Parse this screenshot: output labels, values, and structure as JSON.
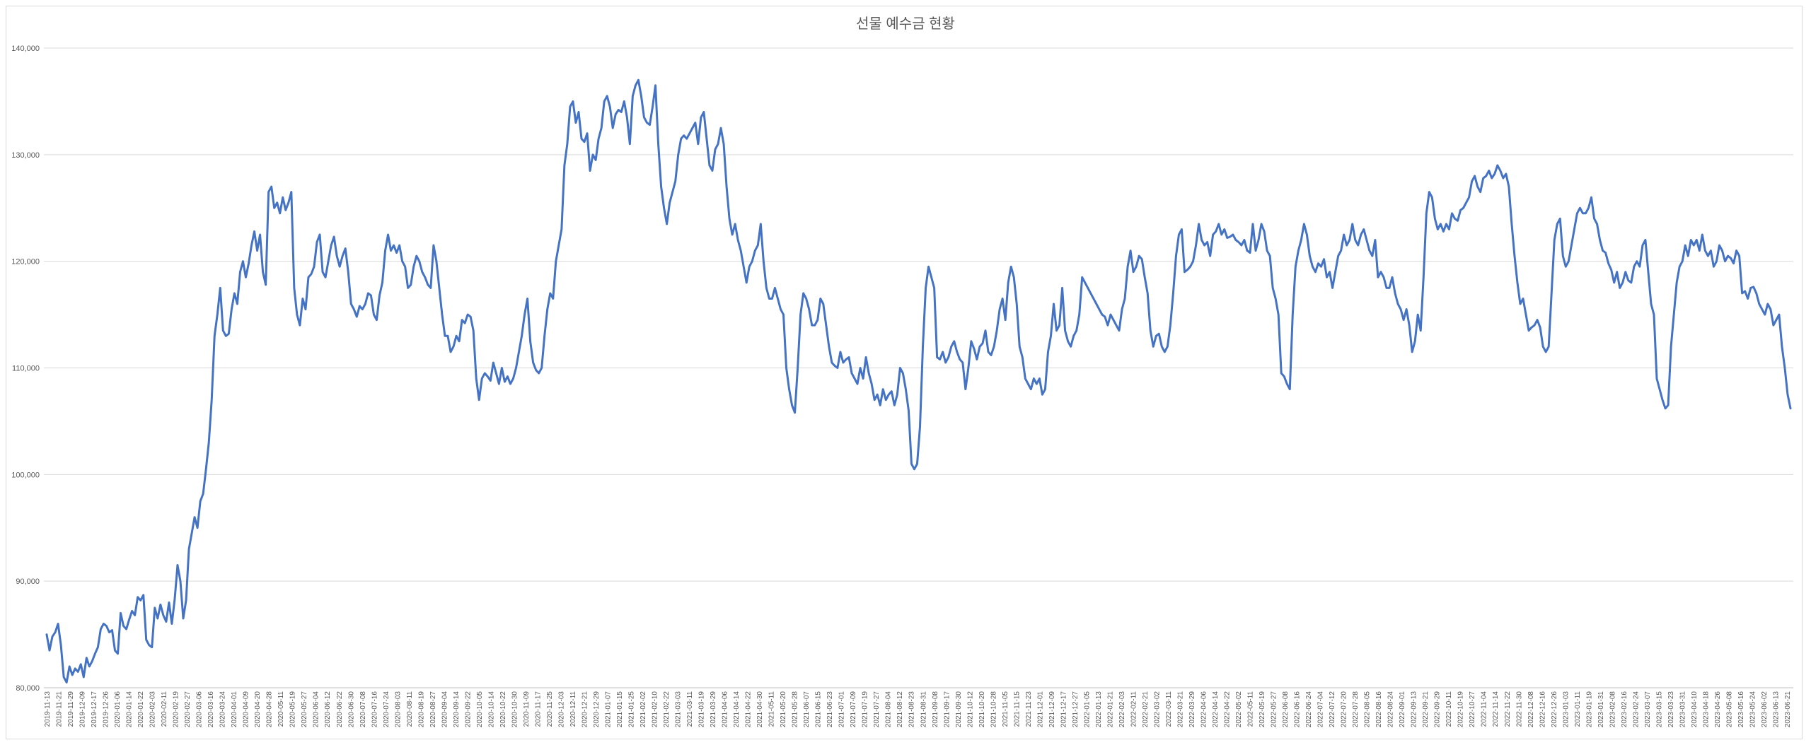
{
  "chart_data": {
    "type": "line",
    "title": "선물 예수금 현황",
    "xlabel": "",
    "ylabel": "",
    "ylim": [
      80000,
      140000
    ],
    "yticks": [
      80000,
      90000,
      100000,
      110000,
      120000,
      130000,
      140000
    ],
    "ytick_labels": [
      "80,000",
      "90,000",
      "100,000",
      "110,000",
      "120,000",
      "130,000",
      "140,000"
    ],
    "grid": true,
    "legend": "none",
    "color": "#4472c4",
    "x_tick_labels": [
      "2019-11-13",
      "2019-11-21",
      "2019-11-29",
      "2019-12-09",
      "2019-12-17",
      "2019-12-26",
      "2020-01-06",
      "2020-01-14",
      "2020-01-22",
      "2020-02-03",
      "2020-02-11",
      "2020-02-19",
      "2020-02-27",
      "2020-03-06",
      "2020-03-16",
      "2020-03-24",
      "2020-04-01",
      "2020-04-09",
      "2020-04-20",
      "2020-04-28",
      "2020-05-11",
      "2020-05-19",
      "2020-05-27",
      "2020-06-04",
      "2020-06-12",
      "2020-06-22",
      "2020-06-30",
      "2020-07-08",
      "2020-07-16",
      "2020-07-24",
      "2020-08-03",
      "2020-08-11",
      "2020-08-19",
      "2020-08-27",
      "2020-09-04",
      "2020-09-14",
      "2020-09-22",
      "2020-10-05",
      "2020-10-14",
      "2020-10-22",
      "2020-10-30",
      "2020-11-09",
      "2020-11-17",
      "2020-11-25",
      "2020-12-03",
      "2020-12-11",
      "2020-12-21",
      "2020-12-29",
      "2021-01-07",
      "2021-01-15",
      "2021-01-25",
      "2021-02-02",
      "2021-02-10",
      "2021-02-22",
      "2021-03-03",
      "2021-03-11",
      "2021-03-19",
      "2021-03-29",
      "2021-04-06",
      "2021-04-14",
      "2021-04-22",
      "2021-04-30",
      "2021-05-11",
      "2021-05-20",
      "2021-05-28",
      "2021-06-07",
      "2021-06-15",
      "2021-06-23",
      "2021-07-01",
      "2021-07-09",
      "2021-07-19",
      "2021-07-27",
      "2021-08-04",
      "2021-08-12",
      "2021-08-23",
      "2021-08-31",
      "2021-09-08",
      "2021-09-17",
      "2021-09-30",
      "2021-10-12",
      "2021-10-20",
      "2021-10-28",
      "2021-11-05",
      "2021-11-15",
      "2021-11-23",
      "2021-12-01",
      "2021-12-09",
      "2021-12-17",
      "2021-12-27",
      "2022-01-05",
      "2022-01-13",
      "2022-01-21",
      "2022-02-03",
      "2022-02-11",
      "2022-02-21",
      "2022-03-02",
      "2022-03-11",
      "2022-03-21",
      "2022-03-29",
      "2022-04-06",
      "2022-04-14",
      "2022-04-22",
      "2022-05-02",
      "2022-05-11",
      "2022-05-19",
      "2022-05-27",
      "2022-06-08",
      "2022-06-16",
      "2022-06-24",
      "2022-07-04",
      "2022-07-12",
      "2022-07-20",
      "2022-07-28",
      "2022-08-05",
      "2022-08-16",
      "2022-08-24",
      "2022-09-01",
      "2022-09-13",
      "2022-09-21",
      "2022-09-29",
      "2022-10-11",
      "2022-10-19",
      "2022-10-27",
      "2022-11-04",
      "2022-11-14",
      "2022-11-22",
      "2022-11-30",
      "2022-12-08",
      "2022-12-16",
      "2022-12-26",
      "2023-01-03",
      "2023-01-11",
      "2023-01-19",
      "2023-01-31",
      "2023-02-08",
      "2023-02-16",
      "2023-02-24",
      "2023-03-07",
      "2023-03-15",
      "2023-03-23",
      "2023-03-31",
      "2023-04-10",
      "2023-04-18",
      "2023-04-26",
      "2023-05-08",
      "2023-05-16",
      "2023-05-24",
      "2023-06-02",
      "2023-06-13",
      "2023-06-21"
    ],
    "x_start_date": "2019-11-13",
    "series": [
      {
        "values": [
          85000,
          83500,
          84800,
          85200,
          86000,
          84000,
          81000,
          80500,
          82000,
          81200,
          81800,
          81500,
          82200,
          81000,
          82800,
          82000,
          82500,
          83200,
          83800,
          85500,
          86000,
          85800,
          85200,
          85400,
          83500,
          83200,
          87000,
          85800,
          85500,
          86400,
          87200,
          86800,
          88500,
          88200,
          88700,
          84500,
          84000,
          83800,
          87500,
          86500,
          87800,
          86800,
          86200,
          88000,
          86000,
          88300,
          91500,
          90000,
          86500,
          88200,
          93000,
          94500,
          96000,
          95000,
          97500,
          98200,
          100500,
          103000,
          107000,
          113000,
          115000,
          117500,
          113500,
          113000,
          113200,
          115500,
          117000,
          116000,
          119000,
          120000,
          118500,
          119800,
          121500,
          122800,
          121000,
          122500,
          119000,
          117800,
          126500,
          127000,
          125000,
          125500,
          124500,
          126000,
          124800,
          125500,
          126500,
          117500,
          115000,
          114000,
          116500,
          115500,
          118500,
          118800,
          119500,
          121800,
          122500,
          119000,
          118500,
          120000,
          121500,
          122300,
          120500,
          119500,
          120500,
          121200,
          119000,
          116000,
          115500,
          114800,
          115800,
          115500,
          116000,
          117000,
          116800,
          115000,
          114500,
          116800,
          118000,
          121000,
          122500,
          121000,
          121500,
          120800,
          121500,
          120000,
          119500,
          117500,
          117800,
          119500,
          120500,
          120000,
          119000,
          118500,
          117800,
          117500,
          121500,
          120000,
          117500,
          115000,
          113000,
          113000,
          111500,
          112000,
          113000,
          112500,
          114500,
          114200,
          115000,
          114800,
          113500,
          109000,
          107000,
          109000,
          109500,
          109200,
          108800,
          110500,
          109500,
          108500,
          110000,
          108700,
          109200,
          108500,
          109000,
          110000,
          111500,
          113000,
          115000,
          116500,
          112500,
          110500,
          109800,
          109500,
          110000,
          113000,
          115500,
          117000,
          116500,
          120000,
          121500,
          123000,
          129000,
          131000,
          134500,
          135000,
          133000,
          134000,
          131500,
          131200,
          132000,
          128500,
          130000,
          129500,
          131500,
          132500,
          135000,
          135500,
          134500,
          132500,
          133800,
          134200,
          134000,
          135000,
          133500,
          131000,
          135500,
          136500,
          137000,
          135500,
          133500,
          133000,
          132800,
          134500,
          136500,
          131000,
          127000,
          125000,
          123500,
          125500,
          126500,
          127500,
          130000,
          131500,
          131800,
          131500,
          132000,
          132500,
          133000,
          131000,
          133500,
          134000,
          131500,
          129000,
          128500,
          130500,
          131000,
          132500,
          131000,
          127000,
          124000,
          122500,
          123500,
          122000,
          121000,
          119500,
          118000,
          119500,
          120000,
          121000,
          121500,
          123500,
          120000,
          117500,
          116500,
          116500,
          117500,
          116500,
          115500,
          115000,
          110000,
          108000,
          106500,
          105800,
          110000,
          115000,
          117000,
          116500,
          115500,
          114000,
          114000,
          114500,
          116500,
          116000,
          114000,
          112000,
          110500,
          110200,
          110000,
          111500,
          110500,
          110800,
          111000,
          109500,
          109000,
          108500,
          110000,
          109000,
          111000,
          109500,
          108500,
          107000,
          107500,
          106500,
          108000,
          107000,
          107500,
          107800,
          106500,
          107500,
          110000,
          109500,
          108000,
          106000,
          101000,
          100500,
          101000,
          104500,
          112000,
          117500,
          119500,
          118500,
          117500,
          111000,
          110800,
          111500,
          110500,
          111000,
          112000,
          112500,
          111500,
          110800,
          110500,
          108000,
          110000,
          112500,
          111800,
          110800,
          112000,
          112300,
          113500,
          111500,
          111200,
          112000,
          113500,
          115500,
          116500,
          114500,
          118000,
          119500,
          118500,
          116000,
          112000,
          111000,
          109000,
          108500,
          108000,
          109000,
          108500,
          109000,
          107500,
          108000,
          111500,
          113000,
          116000,
          113500,
          114000,
          117500,
          113500,
          112500,
          112000,
          113000,
          113500,
          115000,
          118500,
          118000,
          117500,
          117000,
          116500,
          116000,
          115500,
          115000,
          114800,
          114000,
          115000,
          114500,
          114000,
          113500,
          115500,
          116500,
          119500,
          121000,
          119000,
          119500,
          120500,
          120200,
          118500,
          117000,
          113500,
          112000,
          113000,
          113200,
          112000,
          111500,
          112000,
          114000,
          117000,
          120500,
          122500,
          123000,
          119000,
          119200,
          119500,
          120000,
          121500,
          123500,
          122000,
          121500,
          121800,
          120500,
          122500,
          122800,
          123500,
          122500,
          123000,
          122200,
          122300,
          122500,
          122000,
          121800,
          121500,
          122000,
          121000,
          120800,
          123500,
          121000,
          122000,
          123500,
          122800,
          121000,
          120500,
          117500,
          116500,
          115000,
          109500,
          109200,
          108500,
          108000,
          115000,
          119500,
          121000,
          122000,
          123500,
          122500,
          120500,
          119500,
          119000,
          119800,
          119500,
          120200,
          118500,
          119000,
          117500,
          119000,
          120500,
          121000,
          122500,
          121500,
          122000,
          123500,
          122000,
          121500,
          122500,
          123000,
          122000,
          121000,
          120500,
          122000,
          118500,
          119000,
          118500,
          117500,
          117500,
          118500,
          117000,
          116000,
          115500,
          114500,
          115500,
          114000,
          111500,
          112500,
          115000,
          113500,
          118500,
          124500,
          126500,
          126000,
          124000,
          123000,
          123500,
          122800,
          123500,
          123000,
          124500,
          124000,
          123800,
          124800,
          125000,
          125500,
          126000,
          127500,
          128000,
          127000,
          126500,
          127800,
          128000,
          128500,
          127800,
          128200,
          129000,
          128500,
          127800,
          128200,
          127000,
          123500,
          120500,
          118000,
          116000,
          116500,
          115000,
          113500,
          113800,
          114000,
          114500,
          113800,
          112000,
          111500,
          112000,
          117000,
          122000,
          123500,
          124000,
          120500,
          119500,
          120000,
          121500,
          123000,
          124500,
          125000,
          124500,
          124500,
          125000,
          126000,
          124000,
          123500,
          122000,
          121000,
          120800,
          119800,
          119200,
          118000,
          119000,
          117500,
          118000,
          119000,
          118200,
          118000,
          119500,
          120000,
          119500,
          121500,
          122000,
          119000,
          116000,
          115000,
          109000,
          108000,
          107000,
          106200,
          106500,
          112000,
          115000,
          118000,
          119500,
          120000,
          121500,
          120500,
          122000,
          121500,
          122000,
          121000,
          122500,
          121000,
          120500,
          121000,
          119500,
          120000,
          121500,
          121000,
          120000,
          120500,
          120300,
          119800,
          121000,
          120500,
          117000,
          117200,
          116500,
          117500,
          117600,
          117000,
          116000,
          115500,
          115000,
          116000,
          115500,
          114000,
          114500,
          115000,
          112000,
          110000,
          107500,
          106200
        ]
      }
    ]
  }
}
